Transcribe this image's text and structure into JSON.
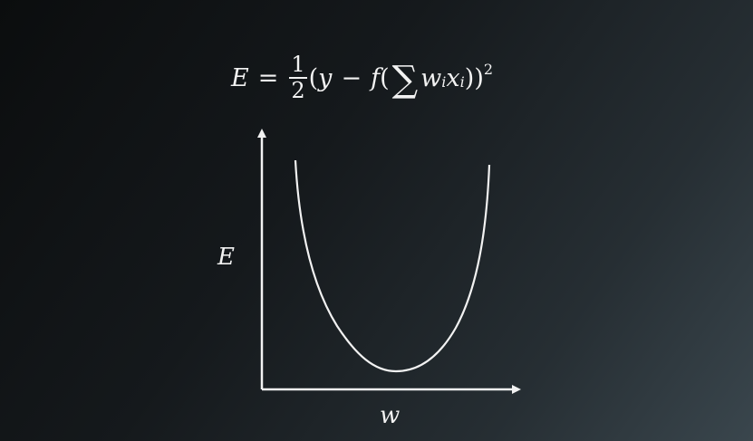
{
  "formula": {
    "lhs": "E",
    "equals": "=",
    "frac_num": "1",
    "frac_den": "2",
    "open": "(",
    "y": "y",
    "minus": "−",
    "f": "f",
    "paren_open": "(",
    "sigma": "∑",
    "w": "w",
    "w_sub": "i",
    "x": "x",
    "x_sub": "i",
    "paren_close": "))",
    "exponent": "2"
  },
  "plot": {
    "y_axis_label": "E",
    "x_axis_label": "w",
    "curve_shape": "u-shaped",
    "line_color": "#f2f2f2"
  }
}
